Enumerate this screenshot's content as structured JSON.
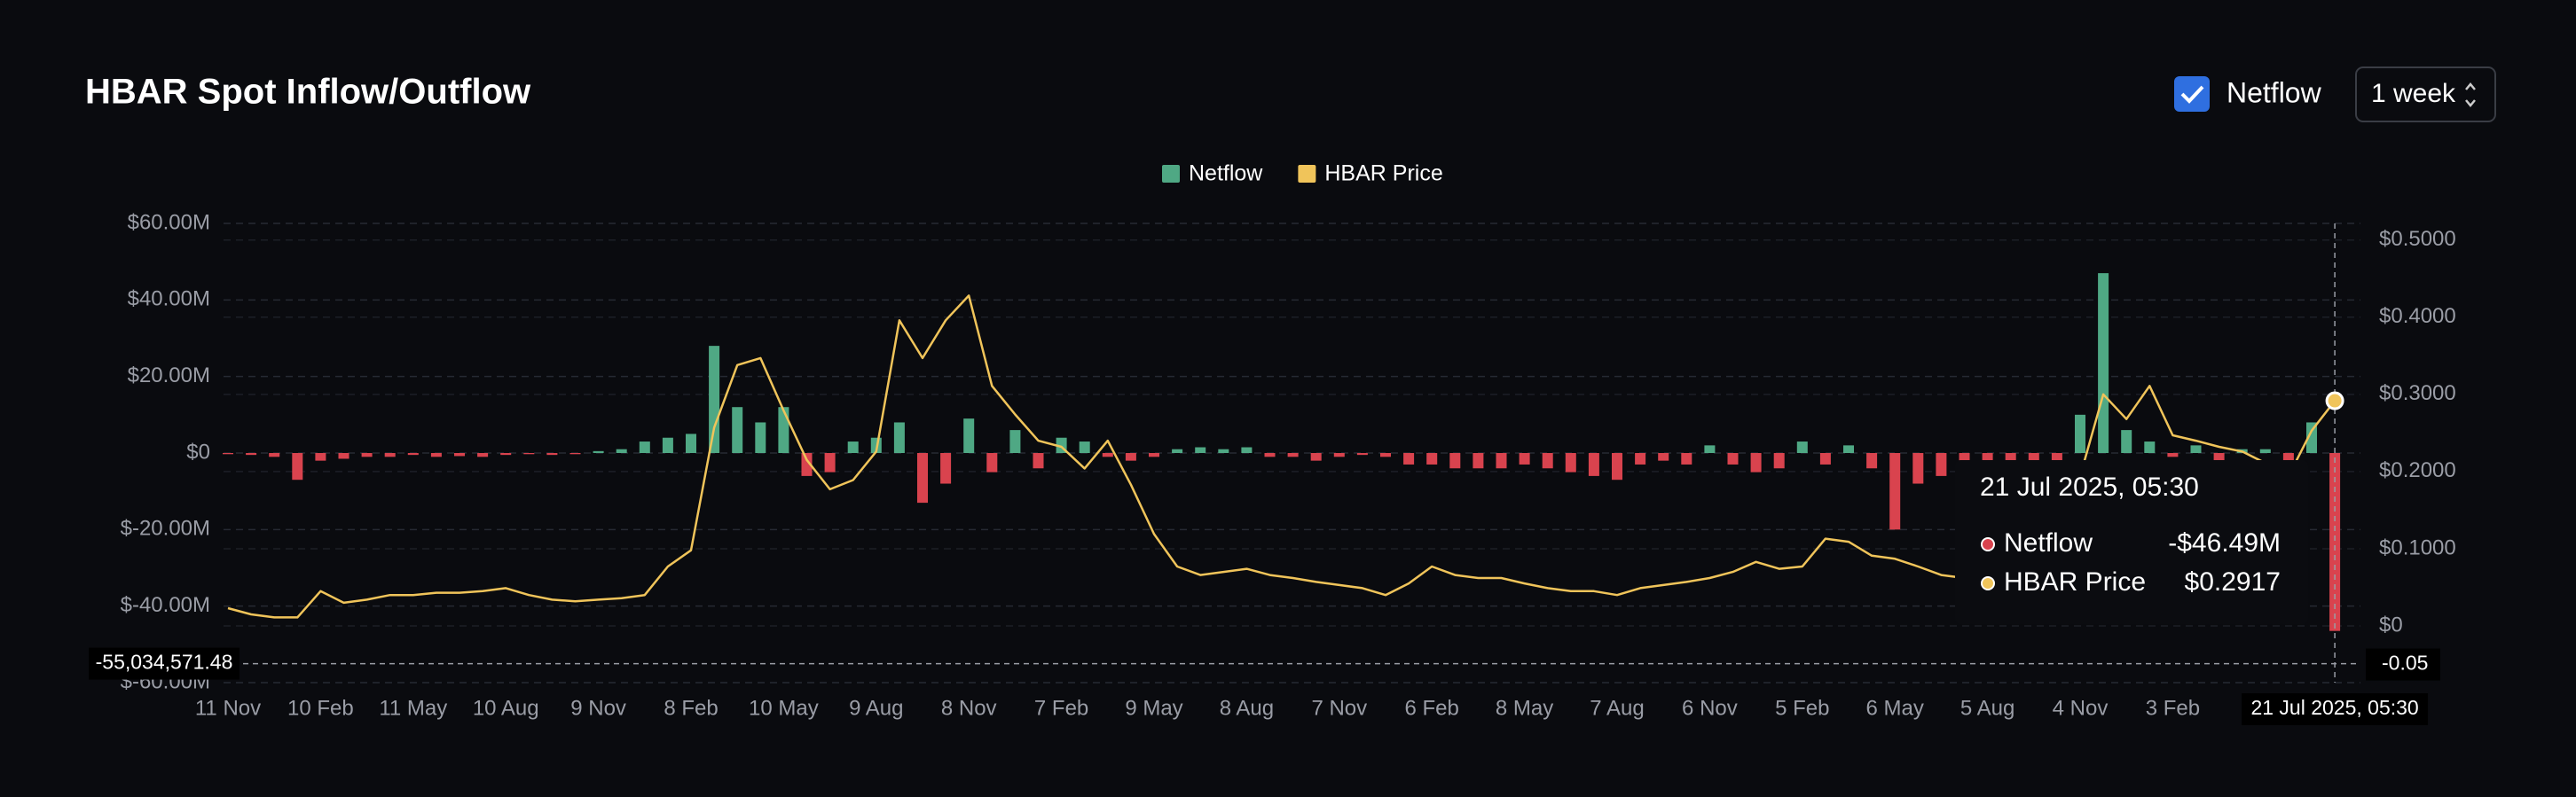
{
  "header": {
    "title": "HBAR Spot Inflow/Outflow",
    "toggle_label": "Netflow",
    "interval": "1 week"
  },
  "chart_data": {
    "type": "bar-line",
    "categories": [
      "11 Nov",
      null,
      null,
      null,
      "10 Feb",
      null,
      null,
      null,
      "11 May",
      null,
      null,
      null,
      "10 Aug",
      null,
      null,
      null,
      "9 Nov",
      null,
      null,
      null,
      "8 Feb",
      null,
      null,
      null,
      "10 May",
      null,
      null,
      null,
      "9 Aug",
      null,
      null,
      null,
      "8 Nov",
      null,
      null,
      null,
      "7 Feb",
      null,
      null,
      null,
      "9 May",
      null,
      null,
      null,
      "8 Aug",
      null,
      null,
      null,
      "7 Nov",
      null,
      null,
      null,
      "6 Feb",
      null,
      null,
      null,
      "8 May",
      null,
      null,
      null,
      "7 Aug",
      null,
      null,
      null,
      "6 Nov",
      null,
      null,
      null,
      "5 Feb",
      null,
      null,
      null,
      "6 May",
      null,
      null,
      null,
      "5 Aug",
      null,
      null,
      null,
      "4 Nov",
      null,
      null,
      null,
      "3 Feb",
      null,
      null,
      null,
      null,
      null,
      null,
      null
    ],
    "series": [
      {
        "name": "Netflow",
        "color": "#4fa884",
        "negative_color": "#d9434e",
        "values": [
          -300000,
          -500000,
          -1000000,
          -7000000,
          -2000000,
          -1500000,
          -1000000,
          -1000000,
          -500000,
          -1000000,
          -800000,
          -1000000,
          -500000,
          -300000,
          -500000,
          -300000,
          500000,
          1000000,
          3000000,
          4000000,
          5000000,
          28000000,
          12000000,
          8000000,
          12000000,
          -6000000,
          -5000000,
          3000000,
          4000000,
          8000000,
          -13000000,
          -8000000,
          9000000,
          -5000000,
          6000000,
          -4000000,
          4000000,
          3000000,
          -1000000,
          -2000000,
          -1000000,
          1000000,
          1500000,
          1000000,
          1500000,
          -1000000,
          -1000000,
          -2000000,
          -1000000,
          -500000,
          -1000000,
          -3000000,
          -3000000,
          -4000000,
          -4000000,
          -4000000,
          -3000000,
          -4000000,
          -5000000,
          -6000000,
          -7000000,
          -3000000,
          -2000000,
          -3000000,
          2000000,
          -3000000,
          -5000000,
          -4000000,
          3000000,
          -3000000,
          2000000,
          -4000000,
          -20000000,
          -8000000,
          -6000000,
          -8000000,
          -4000000,
          -2000000,
          -3000000,
          -2000000,
          10000000,
          47000000,
          6000000,
          3000000,
          -1000000,
          2000000,
          -2000000,
          1000000,
          1000000,
          -2000000,
          8000000,
          -46490000
        ]
      },
      {
        "name": "HBAR Price",
        "color": "#f0c45a",
        "axis": "y2",
        "values": [
          0.023,
          0.015,
          0.011,
          0.011,
          0.045,
          0.03,
          0.034,
          0.04,
          0.04,
          0.043,
          0.043,
          0.045,
          0.049,
          0.04,
          0.034,
          0.032,
          0.034,
          0.036,
          0.04,
          0.077,
          0.098,
          0.257,
          0.338,
          0.347,
          0.279,
          0.215,
          0.177,
          0.189,
          0.226,
          0.396,
          0.347,
          0.396,
          0.428,
          0.311,
          0.274,
          0.24,
          0.232,
          0.204,
          0.24,
          0.183,
          0.119,
          0.077,
          0.066,
          0.07,
          0.074,
          0.066,
          0.062,
          0.057,
          0.053,
          0.049,
          0.04,
          0.055,
          0.077,
          0.066,
          0.062,
          0.062,
          0.055,
          0.049,
          0.045,
          0.045,
          0.04,
          0.049,
          0.053,
          0.057,
          0.062,
          0.07,
          0.083,
          0.074,
          0.077,
          0.113,
          0.109,
          0.091,
          0.087,
          0.077,
          0.066,
          0.062,
          0.066,
          0.077,
          0.098,
          0.13,
          0.194,
          0.3,
          0.268,
          0.311,
          0.247,
          0.24,
          0.232,
          0.226,
          0.211,
          0.194,
          0.253,
          0.2917
        ]
      }
    ],
    "ylim": [
      -60000000,
      60000000
    ],
    "yticks": [
      {
        "value": -60000000,
        "label": "$-60.00M"
      },
      {
        "value": -40000000,
        "label": "$-40.00M"
      },
      {
        "value": -20000000,
        "label": "$-20.00M"
      },
      {
        "value": 0,
        "label": "$0"
      },
      {
        "value": 20000000,
        "label": "$20.00M"
      },
      {
        "value": 40000000,
        "label": "$40.00M"
      },
      {
        "value": 60000000,
        "label": "$60.00M"
      }
    ],
    "y2lim": [
      -0.0735,
      0.5215
    ],
    "y2ticks": [
      {
        "value": 0,
        "label": "$0"
      },
      {
        "value": 0.1,
        "label": "$0.1000"
      },
      {
        "value": 0.2,
        "label": "$0.2000"
      },
      {
        "value": 0.3,
        "label": "$0.3000"
      },
      {
        "value": 0.4,
        "label": "$0.4000"
      },
      {
        "value": 0.5,
        "label": "$0.5000"
      }
    ],
    "grid": true,
    "legend": "top",
    "crosshair": {
      "index": 91,
      "y": {
        "value": -55034571.48,
        "label": "-55,034,571.48"
      },
      "y2": {
        "value": -0.05,
        "label": "-0.05"
      }
    },
    "tooltip": {
      "title": "21 Jul 2025, 05:30",
      "value_labels": [
        "-$46.49M",
        "$0.2917"
      ]
    }
  }
}
